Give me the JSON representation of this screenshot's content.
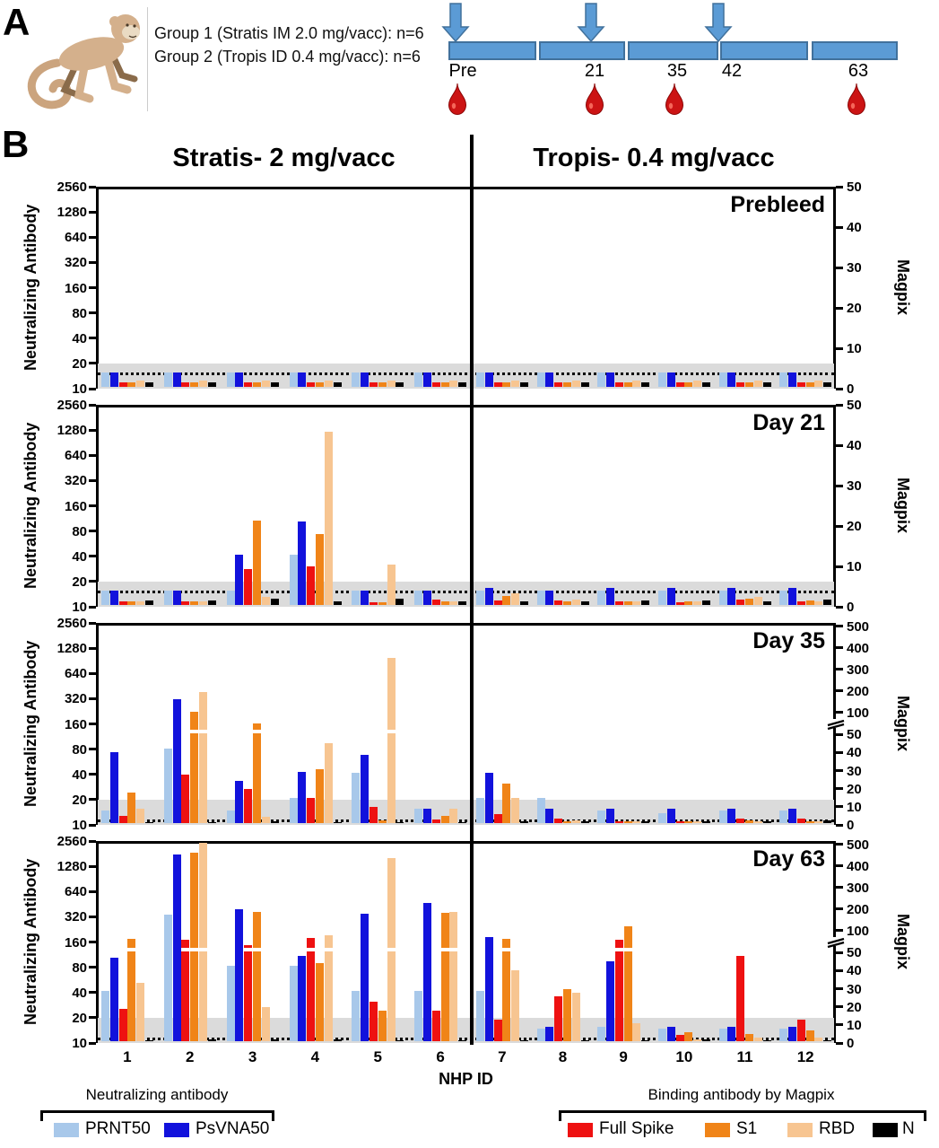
{
  "panel_a": {
    "label": "A",
    "group1": "Group 1 (Stratis IM 2.0 mg/vacc): n=6",
    "group2": "Group 2 (Tropis ID 0.4 mg/vacc): n=6",
    "timeline": {
      "segments": 5,
      "timepoints": [
        {
          "label": "Pre",
          "syringe_arrow": true,
          "blood_draw": true
        },
        {
          "label": "21",
          "syringe_arrow": true,
          "blood_draw": true
        },
        {
          "label": "35",
          "syringe_arrow": false,
          "blood_draw": true
        },
        {
          "label": "42",
          "syringe_arrow": true,
          "blood_draw": false
        },
        {
          "label": "63",
          "syringe_arrow": false,
          "blood_draw": true
        }
      ]
    }
  },
  "panel_b": {
    "label": "B"
  },
  "chart_data": {
    "type": "bar",
    "xlabel": "NHP ID",
    "categories": [
      "1",
      "2",
      "3",
      "4",
      "5",
      "6",
      "7",
      "8",
      "9",
      "10",
      "11",
      "12"
    ],
    "group_headers": {
      "left": "Stratis- 2 mg/vacc",
      "right": "Tropis- 0.4 mg/vacc"
    },
    "left_axis": {
      "label": "Neutralizing Antibody",
      "scale": "log2",
      "range": [
        10,
        2560
      ],
      "ticks": [
        2560,
        1280,
        640,
        320,
        160,
        80,
        40,
        20,
        10
      ]
    },
    "right_axis_label": "Magpix",
    "lod_band_neut": [
      10,
      20
    ],
    "series_names": [
      "PRNT50",
      "PsVNA50",
      "Full Spike",
      "S1",
      "RBD",
      "N"
    ],
    "series_axis": [
      "left",
      "left",
      "right",
      "right",
      "right",
      "right"
    ],
    "panels": [
      {
        "label": "Prebleed",
        "magpix_ticks": [
          0,
          10,
          20,
          30,
          40,
          50
        ],
        "break": false,
        "cutoff_magpix": 4,
        "values": {
          "PRNT50": [
            15,
            15,
            15,
            15,
            15,
            15,
            15,
            15,
            15,
            15,
            15,
            15
          ],
          "PsVNA50": [
            15,
            15,
            15,
            15,
            15,
            15,
            15,
            15,
            15,
            15,
            15,
            15
          ],
          "Full Spike": [
            1.2,
            1.2,
            1.2,
            1.2,
            1.2,
            1.2,
            1.2,
            1.2,
            1.2,
            1.2,
            1.2,
            1.2
          ],
          "S1": [
            1.2,
            1.2,
            1.2,
            1.2,
            1.2,
            1.2,
            1.2,
            1.2,
            1.2,
            1.2,
            1.2,
            1.2
          ],
          "RBD": [
            1.5,
            1.5,
            1.5,
            1.5,
            1.5,
            1.5,
            1.5,
            1.5,
            1.5,
            1.5,
            1.5,
            1.5
          ],
          "N": [
            1.2,
            1.2,
            1.2,
            1.2,
            1.2,
            1.2,
            1.2,
            1.2,
            1.2,
            1.2,
            1.2,
            1.2
          ]
        }
      },
      {
        "label": "Day 21",
        "magpix_ticks": [
          0,
          10,
          20,
          30,
          40,
          50
        ],
        "break": false,
        "cutoff_magpix": 4,
        "values": {
          "PRNT50": [
            15,
            15,
            15,
            40,
            15,
            15,
            15,
            15,
            15,
            15,
            15,
            15
          ],
          "PsVNA50": [
            15,
            15,
            40,
            100,
            15,
            15,
            16,
            15,
            16,
            16,
            16,
            16
          ],
          "Full Spike": [
            1,
            0.8,
            9,
            9.5,
            0.7,
            1.3,
            1.2,
            1.2,
            0.8,
            0.7,
            1.3,
            1
          ],
          "S1": [
            1,
            0.8,
            21,
            17.5,
            0.7,
            1,
            2.3,
            1,
            1,
            0.8,
            1.6,
            1.2
          ],
          "RBD": [
            1,
            1,
            2,
            43,
            10,
            0.8,
            2.8,
            1.4,
            1,
            0.8,
            1.9,
            1
          ],
          "N": [
            1.2,
            1.2,
            1.5,
            1,
            1.5,
            1,
            1,
            1,
            1.2,
            1.2,
            1,
            1.4
          ]
        }
      },
      {
        "label": "Day 35",
        "magpix_ticks": [
          0,
          10,
          20,
          30,
          40,
          50,
          100,
          200,
          300,
          400,
          500
        ],
        "break": true,
        "cutoff_magpix": 3,
        "values": {
          "PRNT50": [
            14,
            78,
            14,
            20,
            40,
            15,
            20,
            20,
            14,
            13,
            14,
            14
          ],
          "PsVNA50": [
            70,
            300,
            32,
            41,
            65,
            15,
            40,
            15,
            15,
            15,
            15,
            15
          ],
          "Full Spike": [
            4,
            27,
            19,
            14,
            9,
            2,
            5,
            2.5,
            1,
            0.8,
            2.5,
            2.5
          ],
          "S1": [
            17,
            98,
            72,
            30,
            1.5,
            4,
            22,
            1,
            0.8,
            0.8,
            1.5,
            1
          ],
          "RBD": [
            8,
            185,
            3.5,
            44,
            345,
            8,
            14,
            1.5,
            1,
            1,
            1,
            1
          ],
          "N": [
            0.5,
            0.6,
            0.8,
            0.6,
            0.6,
            0.6,
            1,
            1,
            0.8,
            1.2,
            0.8,
            1.5
          ]
        }
      },
      {
        "label": "Day 63",
        "magpix_ticks": [
          0,
          10,
          20,
          30,
          40,
          50,
          100,
          200,
          300,
          400,
          500
        ],
        "break": true,
        "cutoff_magpix": 3,
        "values": {
          "PRNT50": [
            40,
            320,
            80,
            80,
            40,
            40,
            40,
            14,
            15,
            14,
            14,
            14
          ],
          "PsVNA50": [
            100,
            1700,
            370,
            105,
            330,
            440,
            175,
            15,
            90,
            15,
            15,
            15
          ],
          "Full Spike": [
            18,
            75,
            63,
            80,
            22,
            17,
            12,
            25,
            75,
            3.6,
            47,
            12
          ],
          "S1": [
            78,
            455,
            180,
            43,
            17,
            175,
            78,
            29,
            110,
            5,
            4,
            6
          ],
          "RBD": [
            32,
            500,
            19,
            85,
            430,
            178,
            39,
            27,
            10,
            1.2,
            2,
            2
          ],
          "N": [
            0.6,
            1,
            1,
            1,
            0.6,
            0.6,
            0.6,
            0.6,
            0.4,
            1,
            0.6,
            0.6
          ]
        }
      }
    ]
  },
  "legend": {
    "neutralizing": {
      "title": "Neutralizing antibody",
      "items": [
        {
          "label": "PRNT50",
          "color": "#A8C8EA"
        },
        {
          "label": "PsVNA50",
          "color": "#1212DC"
        }
      ]
    },
    "binding": {
      "title": "Binding antibody by Magpix",
      "items": [
        {
          "label": "Full Spike",
          "color": "#EE1111"
        },
        {
          "label": "S1",
          "color": "#F08418"
        },
        {
          "label": "RBD",
          "color": "#F7C591"
        },
        {
          "label": "N",
          "color": "#000000"
        }
      ]
    }
  },
  "colors": {
    "series": {
      "PRNT50": "#A8C8EA",
      "PsVNA50": "#1212DC",
      "Full Spike": "#EE1111",
      "S1": "#F08418",
      "RBD": "#F7C591",
      "N": "#000000"
    },
    "lod_band": "#DBDBDB",
    "timeline_bar": "#5B9BD5",
    "timeline_border": "#41719C",
    "blood_drop": "#CC1414"
  }
}
